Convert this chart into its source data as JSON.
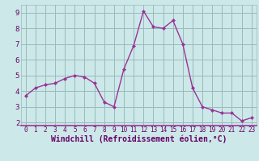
{
  "x": [
    0,
    1,
    2,
    3,
    4,
    5,
    6,
    7,
    8,
    9,
    10,
    11,
    12,
    13,
    14,
    15,
    16,
    17,
    18,
    19,
    20,
    21,
    22,
    23
  ],
  "y": [
    3.7,
    4.2,
    4.4,
    4.5,
    4.8,
    5.0,
    4.9,
    4.5,
    3.3,
    3.0,
    5.4,
    6.9,
    9.1,
    8.1,
    8.0,
    8.5,
    7.0,
    4.2,
    3.0,
    2.8,
    2.6,
    2.6,
    2.1,
    2.3
  ],
  "line_color": "#993399",
  "marker": "D",
  "marker_size": 2.0,
  "bg_color": "#cce8e8",
  "grid_color": "#99bbbb",
  "xlabel": "Windchill (Refroidissement éolien,°C)",
  "ylabel_ticks": [
    2,
    3,
    4,
    5,
    6,
    7,
    8,
    9
  ],
  "xlim": [
    -0.5,
    23.5
  ],
  "ylim": [
    1.8,
    9.5
  ],
  "axis_label_color": "#660066",
  "tick_color": "#660066",
  "xlabel_fontsize": 7.0,
  "xtick_fontsize": 5.5,
  "ytick_fontsize": 6.5,
  "linewidth": 1.0
}
